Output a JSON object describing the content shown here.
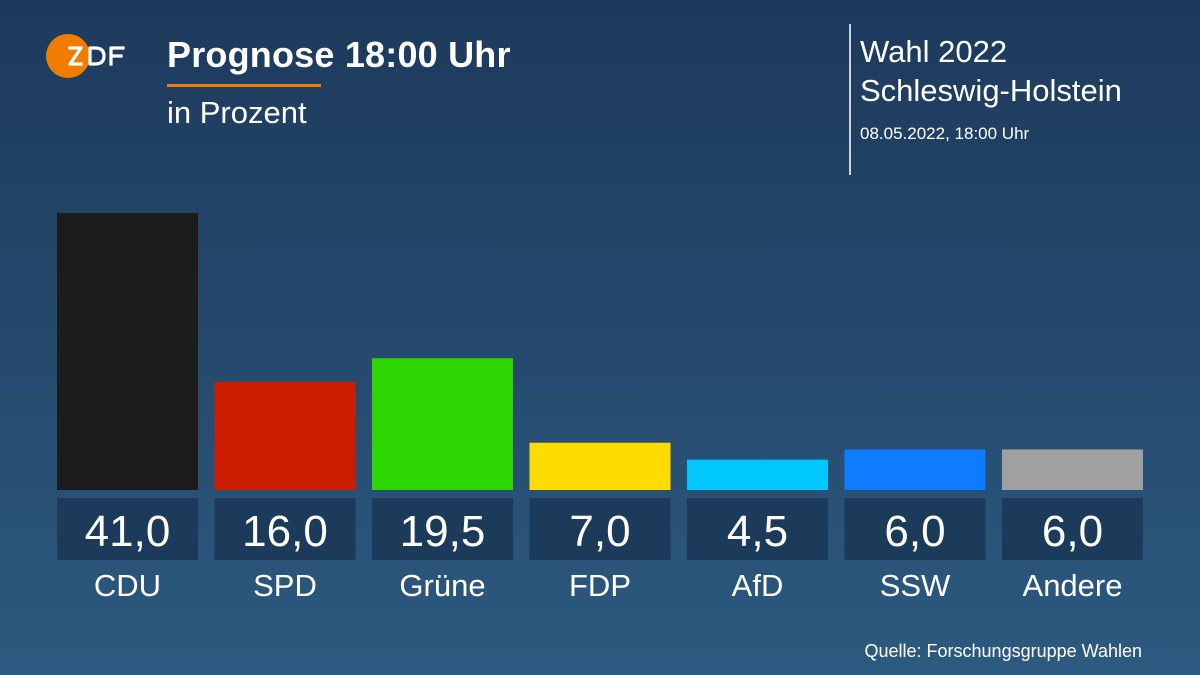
{
  "header": {
    "title": "Prognose 18:00 Uhr",
    "subtitle": "in Prozent",
    "election_line1": "Wahl 2022",
    "election_line2": "Schleswig-Holstein",
    "datetime": "08.05.2022, 18:00 Uhr"
  },
  "logo": {
    "text": "ZDF",
    "color": "#f07d00"
  },
  "source": "Quelle: Forschungsgruppe Wahlen",
  "chart_data": {
    "type": "bar",
    "title": "Prognose 18:00 Uhr",
    "subtitle": "in Prozent",
    "categories": [
      "CDU",
      "SPD",
      "Grüne",
      "FDP",
      "AfD",
      "SSW",
      "Andere"
    ],
    "values": [
      41.0,
      16.0,
      19.5,
      7.0,
      4.5,
      6.0,
      6.0
    ],
    "value_labels": [
      "41,0",
      "16,0",
      "19,5",
      "7,0",
      "4,5",
      "6,0",
      "6,0"
    ],
    "colors": [
      "#1c1c1c",
      "#cc1d00",
      "#2ed600",
      "#ffdc00",
      "#00c8ff",
      "#0f7cff",
      "#a0a0a0"
    ],
    "value_box_color": "#1c3a5a",
    "xlabel": "",
    "ylabel": "",
    "ylim": [
      0,
      41.0
    ],
    "grid": false,
    "legend": "none"
  }
}
